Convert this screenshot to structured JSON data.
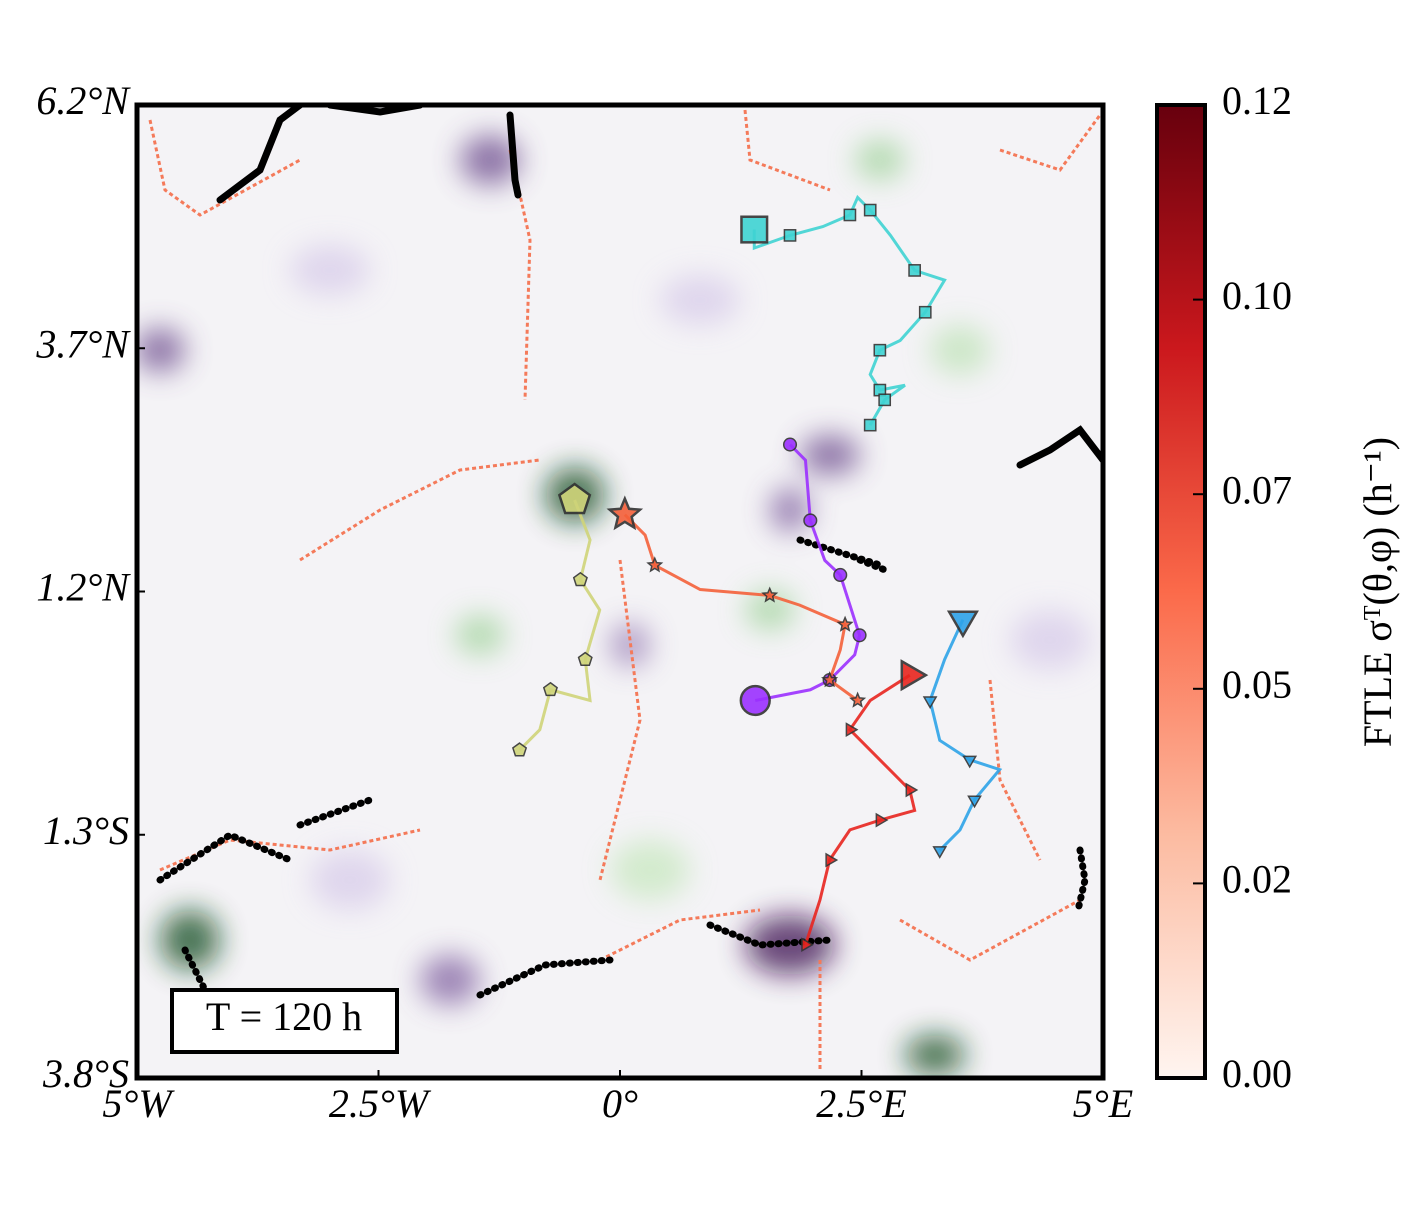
{
  "chart_data": {
    "type": "trajectory-map",
    "annotation": "T = 120 h",
    "xlim": [
      -5,
      5
    ],
    "ylim": [
      -3.8,
      6.2
    ],
    "xticks": [
      {
        "value": -5,
        "label": "5°W"
      },
      {
        "value": -2.5,
        "label": "2.5°W"
      },
      {
        "value": 0,
        "label": "0°"
      },
      {
        "value": 2.5,
        "label": "2.5°E"
      },
      {
        "value": 5,
        "label": "5°E"
      }
    ],
    "yticks": [
      {
        "value": 6.2,
        "label": "6.2°N"
      },
      {
        "value": 3.7,
        "label": "3.7°N"
      },
      {
        "value": 1.2,
        "label": "1.2°N"
      },
      {
        "value": -1.3,
        "label": "1.3°S"
      },
      {
        "value": -3.8,
        "label": "3.8°S"
      }
    ],
    "colorbar": {
      "label": "FTLE σᵀ(θ,φ) (h⁻¹)",
      "clim": [
        0,
        0.12
      ],
      "colors": [
        "#fff5f0",
        "#fcbba1",
        "#fb6a4a",
        "#cb181d",
        "#67000d"
      ],
      "ticks": [
        {
          "value": 0,
          "label": "0.00"
        },
        {
          "value": 0.024,
          "label": "0.02"
        },
        {
          "value": 0.048,
          "label": "0.05"
        },
        {
          "value": 0.072,
          "label": "0.07"
        },
        {
          "value": 0.096,
          "label": "0.10"
        },
        {
          "value": 0.12,
          "label": "0.12"
        }
      ]
    },
    "series": [
      {
        "color": "#3fd3d3",
        "marker": "square",
        "x": [
          1.39,
          1.39,
          1.76,
          2.1,
          2.38,
          2.46,
          2.59,
          2.8,
          3.05,
          3.36,
          3.16,
          2.9,
          2.69,
          2.59,
          2.69,
          2.95,
          2.74,
          2.59
        ],
        "y": [
          4.92,
          4.73,
          4.86,
          4.95,
          5.07,
          5.25,
          5.12,
          4.86,
          4.5,
          4.4,
          4.07,
          3.78,
          3.68,
          3.43,
          3.27,
          3.32,
          3.17,
          2.91
        ]
      },
      {
        "color": "#9b30ff",
        "marker": "circle",
        "x": [
          1.4,
          1.97,
          2.17,
          2.43,
          2.48,
          2.38,
          2.28,
          2.12,
          1.97,
          1.92,
          1.76
        ],
        "y": [
          0.08,
          0.19,
          0.29,
          0.55,
          0.75,
          1.06,
          1.37,
          1.52,
          1.93,
          2.55,
          2.71
        ]
      },
      {
        "color": "#f4603a",
        "marker": "star",
        "x": [
          0.05,
          0.26,
          0.36,
          0.83,
          1.55,
          1.86,
          2.33,
          2.28,
          2.17,
          2.46
        ],
        "y": [
          1.99,
          1.78,
          1.47,
          1.22,
          1.16,
          1.06,
          0.86,
          0.6,
          0.29,
          0.08
        ]
      },
      {
        "color": "#cfd479",
        "marker": "pentagon",
        "x": [
          -0.47,
          -0.31,
          -0.41,
          -0.21,
          -0.36,
          -0.31,
          -0.72,
          -0.83,
          -1.04
        ],
        "y": [
          2.14,
          1.73,
          1.32,
          1.01,
          0.5,
          0.08,
          0.19,
          -0.22,
          -0.43
        ]
      },
      {
        "color": "#e8251f",
        "marker": "triangle-right",
        "x": [
          3.0,
          2.59,
          2.38,
          2.69,
          3.0,
          3.05,
          2.69,
          2.38,
          2.17,
          2.07,
          1.92
        ],
        "y": [
          0.34,
          0.08,
          -0.22,
          -0.53,
          -0.84,
          -1.05,
          -1.15,
          -1.25,
          -1.56,
          -1.97,
          -2.43
        ]
      },
      {
        "color": "#2ea3e8",
        "marker": "triangle-down",
        "x": [
          3.55,
          3.36,
          3.21,
          3.31,
          3.62,
          3.93,
          3.67,
          3.52,
          3.31
        ],
        "y": [
          0.91,
          0.5,
          0.08,
          -0.33,
          -0.53,
          -0.63,
          -0.94,
          -1.25,
          -1.46
        ]
      }
    ]
  }
}
